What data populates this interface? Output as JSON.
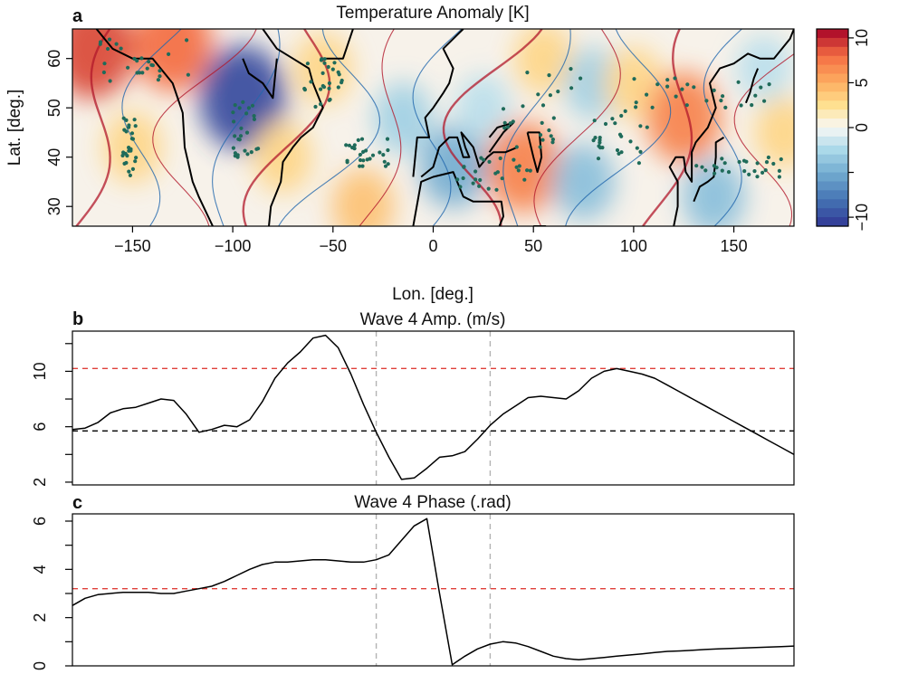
{
  "panels": {
    "a": {
      "letter": "a",
      "title": "Temperature Anomaly [K]",
      "xlabel": "Lon. [deg.]",
      "ylabel": "Lat. [deg.]"
    },
    "b": {
      "letter": "b",
      "title": "Wave 4 Amp. (m/s)"
    },
    "c": {
      "letter": "c",
      "title": "Wave 4 Phase (.rad)"
    }
  },
  "colors": {
    "warm": "#b2182b",
    "cool": "#2166ac",
    "stipple": "#1f6b5a",
    "threshold_red": "#e0403a",
    "threshold_black": "#000000",
    "vline": "#b3b3b3"
  },
  "chart_data": [
    {
      "id": "a",
      "type": "heatmap",
      "title": "Temperature Anomaly [K]",
      "xlabel": "Lon. [deg.]",
      "ylabel": "Lat. [deg.]",
      "xlim": [
        -180,
        180
      ],
      "ylim": [
        26,
        66
      ],
      "xticks": [
        -150,
        -100,
        -50,
        0,
        50,
        100,
        150
      ],
      "yticks": [
        30,
        40,
        50,
        60
      ],
      "colorbar": {
        "ticks": [
          10,
          5,
          0,
          -5,
          -10
        ],
        "tick_labels": [
          "10",
          "5",
          "0",
          "",
          "−10"
        ],
        "range": [
          -11,
          11
        ],
        "colormap": "RdBu_r"
      },
      "anomaly_regions": [
        {
          "lon": -170,
          "lat": 62,
          "value": 9
        },
        {
          "lon": -130,
          "lat": 63,
          "value": 8
        },
        {
          "lon": -150,
          "lat": 42,
          "value": 3
        },
        {
          "lon": -95,
          "lat": 52,
          "value": -10
        },
        {
          "lon": -75,
          "lat": 40,
          "value": 3
        },
        {
          "lon": -55,
          "lat": 58,
          "value": 3
        },
        {
          "lon": -35,
          "lat": 30,
          "value": 4
        },
        {
          "lon": -15,
          "lat": 48,
          "value": -3
        },
        {
          "lon": 10,
          "lat": 38,
          "value": -5
        },
        {
          "lon": 25,
          "lat": 50,
          "value": -2
        },
        {
          "lon": 45,
          "lat": 38,
          "value": 7
        },
        {
          "lon": 55,
          "lat": 60,
          "value": 3
        },
        {
          "lon": 75,
          "lat": 35,
          "value": -4
        },
        {
          "lon": 80,
          "lat": 55,
          "value": -3
        },
        {
          "lon": 100,
          "lat": 55,
          "value": 3
        },
        {
          "lon": 125,
          "lat": 48,
          "value": 7
        },
        {
          "lon": 140,
          "lat": 32,
          "value": -4
        },
        {
          "lon": 165,
          "lat": 58,
          "value": -2
        },
        {
          "lon": 175,
          "lat": 45,
          "value": 3
        }
      ]
    },
    {
      "id": "b",
      "type": "line",
      "title": "Wave 4 Amp. (m/s)",
      "xlim": [
        0,
        57
      ],
      "ylim": [
        1.8,
        12.9
      ],
      "yticks": [
        2,
        6,
        10
      ],
      "minor_yticks": [
        4,
        8,
        12
      ],
      "x": [
        0,
        1,
        2,
        3,
        4,
        5,
        6,
        7,
        8,
        9,
        10,
        11,
        12,
        13,
        14,
        15,
        16,
        17,
        18,
        19,
        20,
        21,
        22,
        23,
        24,
        25,
        26,
        27,
        28,
        29,
        30,
        31,
        32,
        33,
        34,
        35,
        36,
        37,
        38,
        39,
        40,
        41,
        42,
        43,
        44,
        45,
        46,
        47,
        48,
        49,
        50,
        51,
        52,
        53,
        54,
        55,
        56,
        57
      ],
      "series": [
        {
          "values": [
            5.8,
            5.9,
            6.3,
            7.0,
            7.3,
            7.4,
            7.7,
            8.0,
            7.9,
            6.9,
            5.6,
            5.8,
            6.1,
            6.0,
            6.5,
            7.8,
            9.5,
            10.6,
            11.4,
            12.4,
            12.6,
            11.7,
            9.8,
            7.6,
            5.6,
            3.8,
            2.2,
            2.3,
            3.0,
            3.8,
            3.9,
            4.2,
            5.1,
            6.1,
            6.9,
            7.5,
            8.1,
            8.2,
            8.1,
            8.0,
            8.6,
            9.5,
            10.0,
            10.2,
            10.0,
            9.8,
            9.5,
            9.0,
            8.5,
            8.0,
            7.5,
            7.0,
            6.5,
            6.0,
            5.5,
            5.0,
            4.5,
            4.0
          ]
        }
      ],
      "hlines": [
        {
          "y": 10.2,
          "color": "red"
        },
        {
          "y": 5.7,
          "color": "black"
        }
      ],
      "vlines": [
        24,
        33
      ]
    },
    {
      "id": "c",
      "type": "line",
      "title": "Wave 4 Phase (.rad)",
      "xlim": [
        0,
        57
      ],
      "ylim": [
        0,
        6.3
      ],
      "yticks": [
        0,
        2,
        4,
        6
      ],
      "minor_yticks": [
        1,
        3,
        5
      ],
      "x": [
        0,
        1,
        2,
        3,
        4,
        5,
        6,
        7,
        8,
        9,
        10,
        11,
        12,
        13,
        14,
        15,
        16,
        17,
        18,
        19,
        20,
        21,
        22,
        23,
        24,
        25,
        26,
        27,
        28,
        29,
        30,
        31,
        32,
        33,
        34,
        35,
        36,
        37,
        38,
        39,
        40,
        41,
        42,
        43,
        44,
        45,
        46,
        47,
        48,
        49,
        50,
        51,
        52,
        53,
        54,
        55,
        56,
        57
      ],
      "series": [
        {
          "values": [
            2.5,
            2.8,
            2.95,
            3.0,
            3.05,
            3.05,
            3.05,
            3.0,
            3.0,
            3.1,
            3.2,
            3.3,
            3.5,
            3.75,
            4.0,
            4.2,
            4.3,
            4.3,
            4.35,
            4.4,
            4.4,
            4.35,
            4.3,
            4.3,
            4.4,
            4.6,
            5.2,
            5.8,
            6.1,
            3.0,
            0.05,
            0.4,
            0.7,
            0.9,
            1.0,
            0.95,
            0.8,
            0.6,
            0.4,
            0.3,
            0.25,
            0.3,
            0.35,
            0.4,
            0.45,
            0.5,
            0.55,
            0.6,
            0.62,
            0.65,
            0.68,
            0.7,
            0.72,
            0.74,
            0.76,
            0.78,
            0.8,
            0.82
          ]
        }
      ],
      "hlines": [
        {
          "y": 3.2,
          "color": "red"
        }
      ],
      "vlines": [
        24,
        33
      ]
    }
  ]
}
